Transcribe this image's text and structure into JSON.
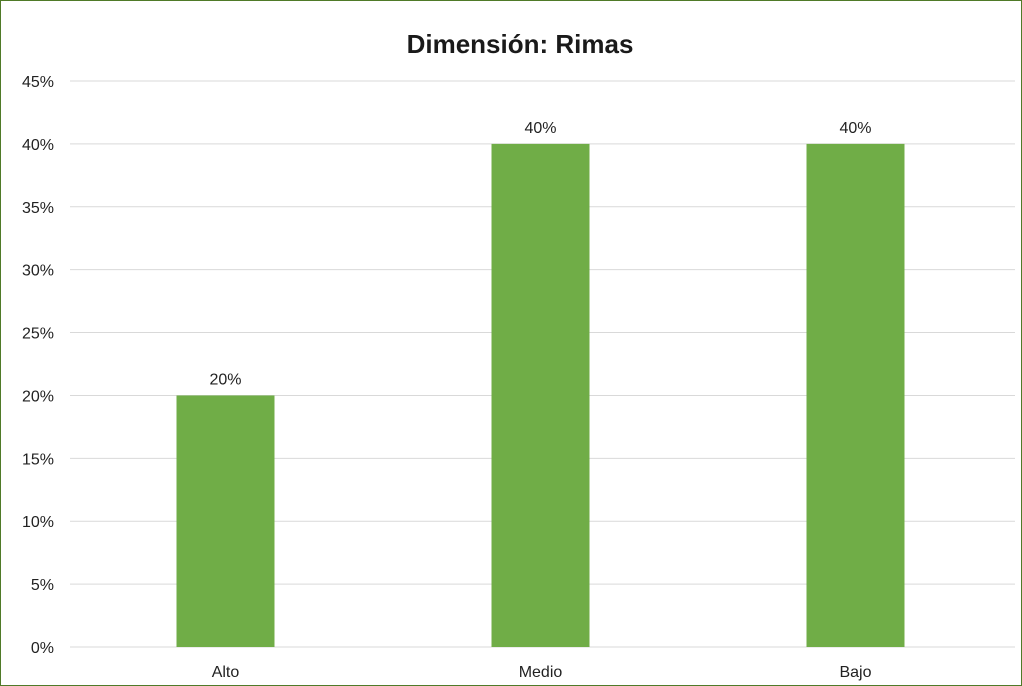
{
  "chart_data": {
    "type": "bar",
    "title": "Dimensión: Rimas",
    "xlabel": "",
    "ylabel": "",
    "categories": [
      "Alto",
      "Medio",
      "Bajo"
    ],
    "values": [
      20,
      40,
      40
    ],
    "value_labels": [
      "20%",
      "40%",
      "40%"
    ],
    "ylim": [
      0,
      45
    ],
    "yticks": [
      0,
      5,
      10,
      15,
      20,
      25,
      30,
      35,
      40,
      45
    ],
    "ytick_labels": [
      "0%",
      "5%",
      "10%",
      "15%",
      "20%",
      "25%",
      "30%",
      "35%",
      "40%",
      "45%"
    ],
    "grid": true,
    "legend": "none",
    "bar_color": "#70ad47",
    "frame_color": "#4f7a28"
  }
}
